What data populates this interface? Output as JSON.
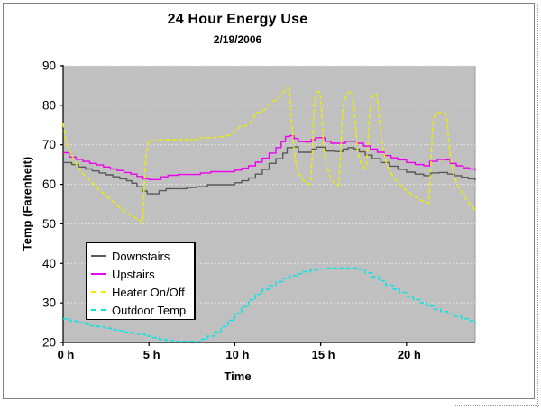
{
  "chart_data": {
    "type": "line",
    "title": "24 Hour Energy Use",
    "subtitle": "2/19/2006",
    "xlabel": "Time",
    "ylabel": "Temp (Farenheit)",
    "xlim": [
      0,
      24
    ],
    "ylim": [
      20,
      90
    ],
    "yticks": [
      20,
      30,
      40,
      50,
      60,
      70,
      80,
      90
    ],
    "xticks": [
      {
        "h": 0,
        "label": "0 h"
      },
      {
        "h": 5,
        "label": "5 h"
      },
      {
        "h": 10,
        "label": "10 h"
      },
      {
        "h": 15,
        "label": "15 h"
      },
      {
        "h": 20,
        "label": "20 h"
      }
    ],
    "grid": "horizontal-dotted",
    "grid_color": "#e2e2e2",
    "plot_bg": "#c0c0c0",
    "axis_color": "#000000",
    "legend_position": "middle-left-inside",
    "series": [
      {
        "name": "Downstairs",
        "color": "#595959",
        "style": "solid",
        "step": true,
        "points": [
          [
            0,
            65.5
          ],
          [
            0.5,
            65
          ],
          [
            0.9,
            64.4
          ],
          [
            1.3,
            63.9
          ],
          [
            1.7,
            63.4
          ],
          [
            2.1,
            62.9
          ],
          [
            2.5,
            62.4
          ],
          [
            2.9,
            61.9
          ],
          [
            3.3,
            61.4
          ],
          [
            3.7,
            60.9
          ],
          [
            4,
            60.3
          ],
          [
            4.3,
            59.4
          ],
          [
            4.6,
            58.3
          ],
          [
            4.9,
            57.6
          ],
          [
            5.3,
            57.6
          ],
          [
            5.6,
            58.4
          ],
          [
            6,
            58.9
          ],
          [
            6.6,
            58.9
          ],
          [
            7.2,
            59.2
          ],
          [
            7.8,
            59.4
          ],
          [
            8.4,
            59.9
          ],
          [
            9.2,
            59.9
          ],
          [
            10,
            60.4
          ],
          [
            10.4,
            60.9
          ],
          [
            10.8,
            61.6
          ],
          [
            11.2,
            62.6
          ],
          [
            11.6,
            63.8
          ],
          [
            12,
            65.3
          ],
          [
            12.4,
            66.5
          ],
          [
            12.8,
            67.9
          ],
          [
            13.05,
            69.3
          ],
          [
            13.45,
            69.5
          ],
          [
            13.7,
            68.1
          ],
          [
            14.2,
            68.1
          ],
          [
            14.5,
            68.9
          ],
          [
            14.75,
            69.4
          ],
          [
            15.05,
            69.4
          ],
          [
            15.25,
            68.4
          ],
          [
            15.8,
            68.3
          ],
          [
            16.3,
            68.9
          ],
          [
            16.6,
            69.3
          ],
          [
            16.95,
            68.9
          ],
          [
            17.25,
            68.2
          ],
          [
            17.6,
            67.4
          ],
          [
            18,
            66.5
          ],
          [
            18.5,
            65.5
          ],
          [
            19,
            64.6
          ],
          [
            19.5,
            63.8
          ],
          [
            20,
            63.1
          ],
          [
            20.5,
            62.6
          ],
          [
            21,
            62.2
          ],
          [
            21.4,
            62.9
          ],
          [
            21.9,
            63
          ],
          [
            22.4,
            62.6
          ],
          [
            22.8,
            62.2
          ],
          [
            23.2,
            61.8
          ],
          [
            23.6,
            61.4
          ],
          [
            24,
            61
          ]
        ]
      },
      {
        "name": "Upstairs",
        "color": "#ee00ee",
        "style": "solid",
        "step": true,
        "points": [
          [
            0,
            68
          ],
          [
            0.35,
            66.9
          ],
          [
            0.75,
            66.3
          ],
          [
            1.15,
            65.8
          ],
          [
            1.55,
            65.3
          ],
          [
            1.95,
            64.9
          ],
          [
            2.35,
            64.4
          ],
          [
            2.75,
            63.9
          ],
          [
            3.15,
            63.5
          ],
          [
            3.55,
            63
          ],
          [
            3.95,
            62.6
          ],
          [
            4.3,
            62
          ],
          [
            4.65,
            61.4
          ],
          [
            5,
            61.2
          ],
          [
            5.4,
            61.2
          ],
          [
            5.7,
            61.9
          ],
          [
            6.1,
            62.3
          ],
          [
            6.7,
            62.5
          ],
          [
            7.4,
            62.5
          ],
          [
            8,
            62.9
          ],
          [
            8.6,
            63.2
          ],
          [
            9.4,
            63.2
          ],
          [
            10,
            63.6
          ],
          [
            10.4,
            64.1
          ],
          [
            10.8,
            64.7
          ],
          [
            11.2,
            65.6
          ],
          [
            11.6,
            66.6
          ],
          [
            12,
            67.9
          ],
          [
            12.4,
            69.3
          ],
          [
            12.7,
            70.8
          ],
          [
            12.95,
            72.1
          ],
          [
            13.2,
            72.3
          ],
          [
            13.45,
            71.6
          ],
          [
            13.7,
            70.8
          ],
          [
            14.1,
            70.7
          ],
          [
            14.45,
            71.3
          ],
          [
            14.7,
            71.8
          ],
          [
            15,
            71.8
          ],
          [
            15.25,
            70.9
          ],
          [
            15.6,
            70.4
          ],
          [
            16.1,
            70.4
          ],
          [
            16.45,
            70.9
          ],
          [
            16.75,
            70.9
          ],
          [
            17.1,
            70.4
          ],
          [
            17.5,
            69.7
          ],
          [
            17.9,
            68.9
          ],
          [
            18.3,
            68.1
          ],
          [
            18.7,
            67.3
          ],
          [
            19.1,
            66.7
          ],
          [
            19.5,
            66.2
          ],
          [
            20,
            65.5
          ],
          [
            20.5,
            65
          ],
          [
            21,
            64.7
          ],
          [
            21.35,
            65.8
          ],
          [
            21.8,
            66.3
          ],
          [
            22.25,
            66.2
          ],
          [
            22.55,
            65.3
          ],
          [
            22.9,
            64.7
          ],
          [
            23.3,
            64.2
          ],
          [
            23.65,
            63.9
          ],
          [
            24,
            63.5
          ]
        ]
      },
      {
        "name": "Heater On/Off",
        "color": "#eded00",
        "style": "dashed",
        "step": false,
        "points": [
          [
            0,
            75.5
          ],
          [
            0.15,
            71
          ],
          [
            0.3,
            69
          ],
          [
            0.5,
            67.5
          ],
          [
            0.7,
            65.5
          ],
          [
            1,
            63.5
          ],
          [
            1.3,
            62
          ],
          [
            1.6,
            61
          ],
          [
            2,
            59
          ],
          [
            2.4,
            57.5
          ],
          [
            2.8,
            56
          ],
          [
            3.2,
            54.5
          ],
          [
            3.6,
            53
          ],
          [
            4,
            52
          ],
          [
            4.3,
            51.3
          ],
          [
            4.55,
            50.7
          ],
          [
            4.65,
            50.5
          ],
          [
            4.7,
            57
          ],
          [
            4.8,
            66
          ],
          [
            4.95,
            70.5
          ],
          [
            5.2,
            71
          ],
          [
            5.6,
            71.2
          ],
          [
            6,
            71.3
          ],
          [
            6.5,
            71.3
          ],
          [
            6.8,
            71.5
          ],
          [
            7,
            70.8
          ],
          [
            7.2,
            71.6
          ],
          [
            7.4,
            70.9
          ],
          [
            7.6,
            71.7
          ],
          [
            7.8,
            71
          ],
          [
            8,
            71.8
          ],
          [
            8.5,
            71.8
          ],
          [
            9,
            71.9
          ],
          [
            9.5,
            72.2
          ],
          [
            9.9,
            72.8
          ],
          [
            10.1,
            73.8
          ],
          [
            10.3,
            74.6
          ],
          [
            10.6,
            74.8
          ],
          [
            10.9,
            75.4
          ],
          [
            11.1,
            77
          ],
          [
            11.3,
            78.2
          ],
          [
            11.6,
            78.4
          ],
          [
            11.9,
            79.5
          ],
          [
            12.1,
            80.8
          ],
          [
            12.4,
            81.3
          ],
          [
            12.6,
            82
          ],
          [
            12.8,
            83.2
          ],
          [
            13,
            84.2
          ],
          [
            13.1,
            84.5
          ],
          [
            13.2,
            84
          ],
          [
            13.3,
            76
          ],
          [
            13.5,
            66.5
          ],
          [
            13.7,
            63
          ],
          [
            14,
            61
          ],
          [
            14.25,
            60.2
          ],
          [
            14.4,
            60
          ],
          [
            14.5,
            66
          ],
          [
            14.6,
            78
          ],
          [
            14.7,
            82.5
          ],
          [
            14.8,
            83.3
          ],
          [
            14.95,
            83.4
          ],
          [
            15.05,
            80
          ],
          [
            15.15,
            70
          ],
          [
            15.35,
            64.5
          ],
          [
            15.6,
            61.5
          ],
          [
            15.85,
            60
          ],
          [
            16.05,
            59.6
          ],
          [
            16.15,
            67
          ],
          [
            16.25,
            76
          ],
          [
            16.35,
            80.8
          ],
          [
            16.5,
            82.5
          ],
          [
            16.65,
            83.3
          ],
          [
            16.8,
            83.4
          ],
          [
            16.9,
            82.5
          ],
          [
            17,
            76
          ],
          [
            17.15,
            68.5
          ],
          [
            17.35,
            65.3
          ],
          [
            17.55,
            64.2
          ],
          [
            17.65,
            64
          ],
          [
            17.75,
            70
          ],
          [
            17.85,
            78
          ],
          [
            17.95,
            81.5
          ],
          [
            18.1,
            82.8
          ],
          [
            18.25,
            83
          ],
          [
            18.35,
            80
          ],
          [
            18.5,
            73
          ],
          [
            18.65,
            68.5
          ],
          [
            18.85,
            65
          ],
          [
            19.1,
            62.8
          ],
          [
            19.4,
            61
          ],
          [
            19.7,
            59.6
          ],
          [
            20,
            58.4
          ],
          [
            20.3,
            57.4
          ],
          [
            20.6,
            56.6
          ],
          [
            20.9,
            55.9
          ],
          [
            21.15,
            55.4
          ],
          [
            21.3,
            55.2
          ],
          [
            21.4,
            63
          ],
          [
            21.5,
            73
          ],
          [
            21.6,
            77
          ],
          [
            21.75,
            78
          ],
          [
            22,
            78.3
          ],
          [
            22.2,
            78.2
          ],
          [
            22.35,
            77
          ],
          [
            22.45,
            71
          ],
          [
            22.6,
            65.5
          ],
          [
            22.8,
            61.5
          ],
          [
            23.1,
            58.8
          ],
          [
            23.4,
            56.8
          ],
          [
            23.7,
            55
          ],
          [
            24,
            53.5
          ]
        ]
      },
      {
        "name": "Outdoor Temp",
        "color": "#00e5e5",
        "style": "dashed",
        "step": true,
        "points": [
          [
            0,
            26
          ],
          [
            0.4,
            25.4
          ],
          [
            0.8,
            25
          ],
          [
            1.2,
            24.6
          ],
          [
            1.6,
            24.2
          ],
          [
            2,
            24
          ],
          [
            2.4,
            23.6
          ],
          [
            2.8,
            23.2
          ],
          [
            3.2,
            23
          ],
          [
            3.6,
            22.6
          ],
          [
            4,
            22.3
          ],
          [
            4.4,
            22
          ],
          [
            4.8,
            21.6
          ],
          [
            5.2,
            21.2
          ],
          [
            5.6,
            20.8
          ],
          [
            6,
            20.5
          ],
          [
            6.4,
            20.3
          ],
          [
            7,
            20.3
          ],
          [
            7.6,
            20.3
          ],
          [
            8,
            20.8
          ],
          [
            8.4,
            21.6
          ],
          [
            8.8,
            22.6
          ],
          [
            9.2,
            24
          ],
          [
            9.6,
            25.6
          ],
          [
            10,
            27.3
          ],
          [
            10.4,
            29
          ],
          [
            10.8,
            30.8
          ],
          [
            11.2,
            32.2
          ],
          [
            11.6,
            33.4
          ],
          [
            12,
            34.4
          ],
          [
            12.4,
            35.4
          ],
          [
            12.8,
            36.2
          ],
          [
            13.2,
            36.9
          ],
          [
            13.6,
            37.4
          ],
          [
            14,
            37.9
          ],
          [
            14.4,
            38.3
          ],
          [
            14.8,
            38.6
          ],
          [
            15.4,
            38.8
          ],
          [
            16,
            38.8
          ],
          [
            16.6,
            38.8
          ],
          [
            17.2,
            38.5
          ],
          [
            17.6,
            37.6
          ],
          [
            18,
            36.6
          ],
          [
            18.4,
            35.6
          ],
          [
            18.8,
            34.5
          ],
          [
            19.2,
            33.5
          ],
          [
            19.6,
            32.6
          ],
          [
            20,
            31.6
          ],
          [
            20.4,
            30.8
          ],
          [
            20.8,
            30
          ],
          [
            21.2,
            29.2
          ],
          [
            21.6,
            28.4
          ],
          [
            22,
            27.8
          ],
          [
            22.4,
            27.2
          ],
          [
            22.8,
            26.6
          ],
          [
            23.2,
            26
          ],
          [
            23.6,
            25.5
          ],
          [
            24,
            25
          ]
        ]
      }
    ]
  },
  "legend": {
    "items": [
      "Downstairs",
      "Upstairs",
      "Heater On/Off",
      "Outdoor Temp"
    ]
  }
}
